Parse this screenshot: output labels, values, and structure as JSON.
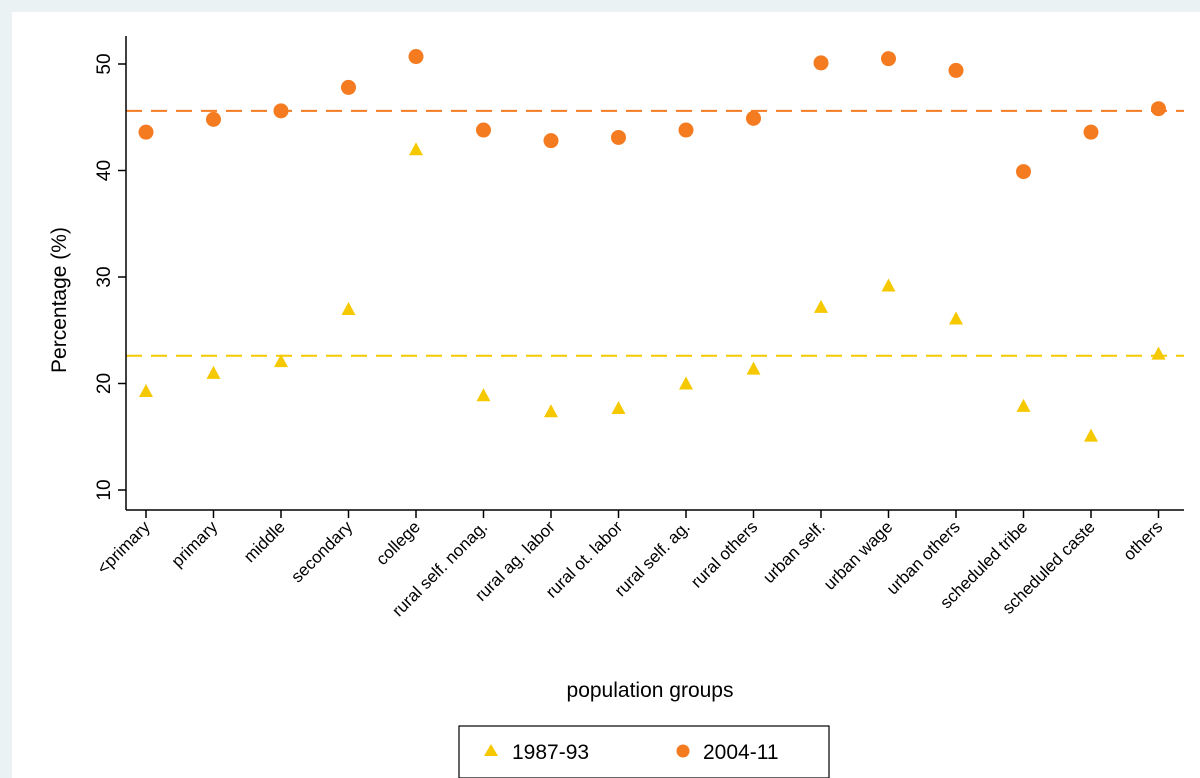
{
  "chart_data": {
    "type": "scatter",
    "title": "",
    "xlabel": "population groups",
    "ylabel": "Percentage (%)",
    "ylim": [
      8,
      53
    ],
    "yticks": [
      10,
      20,
      30,
      40,
      50
    ],
    "grid": false,
    "legend_position": "bottom",
    "categories": [
      "<primary",
      "primary",
      "middle",
      "secondary",
      "college",
      "rural self. nonag.",
      "rural ag. labor",
      "rural ot. labor",
      "rural self. ag.",
      "rural others",
      "urban self.",
      "urban wage",
      "urban others",
      "scheduled tribe",
      "scheduled caste",
      "others"
    ],
    "series": [
      {
        "name": "1987-93",
        "marker": "triangle",
        "color": "#f5c800",
        "values": [
          19.3,
          21.0,
          22.1,
          27.0,
          42.0,
          18.9,
          17.4,
          17.7,
          20.0,
          21.4,
          27.2,
          29.2,
          26.1,
          17.9,
          15.1,
          22.8
        ],
        "reference_line": 22.6
      },
      {
        "name": "2004-11",
        "marker": "circle",
        "color": "#f47b20",
        "values": [
          43.6,
          44.8,
          45.6,
          47.8,
          50.7,
          43.8,
          42.8,
          43.1,
          43.8,
          44.9,
          50.1,
          50.5,
          49.4,
          39.9,
          43.6,
          45.8
        ],
        "reference_line": 45.6
      }
    ]
  }
}
